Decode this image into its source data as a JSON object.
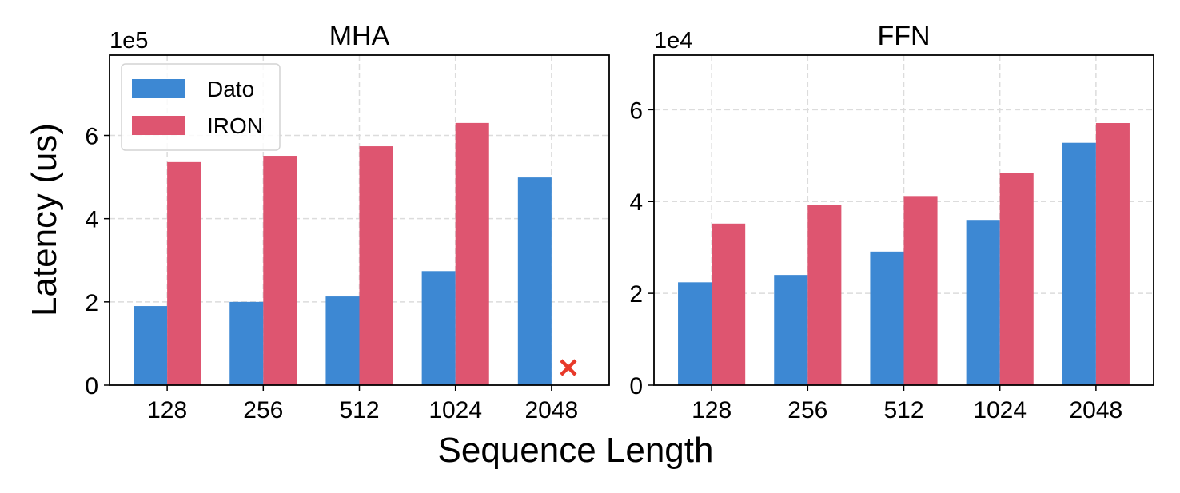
{
  "chart_data": [
    {
      "type": "bar",
      "title": "MHA",
      "xlabel": "Sequence Length",
      "ylabel": "Latency (us)",
      "y_multiplier": "1e5",
      "categories": [
        "128",
        "256",
        "512",
        "1024",
        "2048"
      ],
      "yticks": [
        "0",
        "2",
        "4",
        "6"
      ],
      "ylim": [
        0,
        7.93
      ],
      "grid": true,
      "legend_position": "top-left",
      "series": [
        {
          "name": "Dato",
          "color": "#3d88d3",
          "values": [
            1.9,
            2.0,
            2.13,
            2.74,
            4.99
          ]
        },
        {
          "name": "IRON",
          "color": "#de5570",
          "values": [
            5.36,
            5.51,
            5.74,
            6.3,
            null
          ]
        }
      ],
      "annotations": [
        {
          "type": "missing-marker",
          "symbol": "×",
          "series": "IRON",
          "category": "2048",
          "color": "#e8392a"
        }
      ]
    },
    {
      "type": "bar",
      "title": "FFN",
      "xlabel": "Sequence Length",
      "ylabel": "Latency (us)",
      "y_multiplier": "1e4",
      "categories": [
        "128",
        "256",
        "512",
        "1024",
        "2048"
      ],
      "yticks": [
        "0",
        "2",
        "4",
        "6"
      ],
      "ylim": [
        0,
        7.19
      ],
      "grid": true,
      "series": [
        {
          "name": "Dato",
          "color": "#3d88d3",
          "values": [
            2.24,
            2.4,
            2.91,
            3.6,
            5.28
          ]
        },
        {
          "name": "IRON",
          "color": "#de5570",
          "values": [
            3.52,
            3.92,
            4.12,
            4.62,
            5.71
          ]
        }
      ]
    }
  ],
  "figure": {
    "ylabel": "Latency (us)",
    "xlabel": "Sequence Length"
  }
}
